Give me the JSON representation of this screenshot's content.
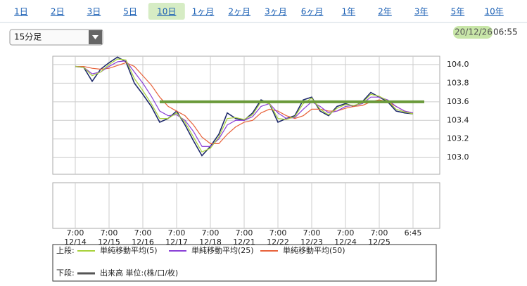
{
  "tabs": [
    "1日",
    "2日",
    "3日",
    "5日",
    "10日",
    "1ヶ月",
    "2ヶ月",
    "3ヶ月",
    "6ヶ月",
    "1年",
    "2年",
    "3年",
    "5年",
    "10年"
  ],
  "selected_tab": 4,
  "interval_select": "15分足",
  "timestamp": {
    "date": "20/12/26",
    "time": "06:55"
  },
  "chart_data": {
    "type": "line",
    "categories": [
      "7:00 12/14",
      null,
      null,
      null,
      "7:00 12/15",
      null,
      null,
      null,
      "7:00 12/16",
      null,
      null,
      null,
      "7:00 12/17",
      null,
      null,
      null,
      "7:00 12/18",
      null,
      null,
      null,
      "7:00 12/21",
      null,
      null,
      null,
      "7:00 12/22",
      null,
      null,
      null,
      "7:00 12/23",
      null,
      null,
      null,
      "7:00 12/24",
      null,
      null,
      null,
      "7:00 12/25",
      null,
      null,
      null,
      "6:45"
    ],
    "price": {
      "color": "#1f2a6b",
      "values": [
        103.98,
        103.97,
        103.82,
        103.95,
        104.02,
        104.08,
        104.03,
        103.8,
        103.68,
        103.55,
        103.38,
        103.42,
        103.5,
        103.35,
        103.18,
        103.02,
        103.12,
        103.25,
        103.48,
        103.42,
        103.4,
        103.48,
        103.62,
        103.58,
        103.38,
        103.42,
        103.45,
        103.62,
        103.65,
        103.5,
        103.45,
        103.55,
        103.58,
        103.55,
        103.6,
        103.7,
        103.65,
        103.6,
        103.5,
        103.48,
        103.47
      ]
    },
    "series": [
      {
        "name": "単純移動平均(5)",
        "color": "#a8d13a",
        "values": [
          103.98,
          103.97,
          103.88,
          103.92,
          104.0,
          104.06,
          104.05,
          103.85,
          103.72,
          103.58,
          103.42,
          103.42,
          103.48,
          103.38,
          103.22,
          103.06,
          103.1,
          103.22,
          103.42,
          103.43,
          103.41,
          103.46,
          103.6,
          103.58,
          103.42,
          103.41,
          103.44,
          103.58,
          103.64,
          103.52,
          103.46,
          103.53,
          103.57,
          103.56,
          103.59,
          103.68,
          103.66,
          103.61,
          103.52,
          103.49,
          103.47
        ]
      },
      {
        "name": "単純移動平均(25)",
        "color": "#8a3fd6",
        "values": [
          103.98,
          103.97,
          103.9,
          103.92,
          103.98,
          104.03,
          104.04,
          103.92,
          103.8,
          103.66,
          103.5,
          103.45,
          103.46,
          103.4,
          103.28,
          103.12,
          103.12,
          103.2,
          103.35,
          103.4,
          103.4,
          103.44,
          103.55,
          103.58,
          103.48,
          103.42,
          103.43,
          103.52,
          103.6,
          103.55,
          103.48,
          103.5,
          103.55,
          103.56,
          103.58,
          103.65,
          103.65,
          103.62,
          103.55,
          103.5,
          103.48
        ]
      },
      {
        "name": "単純移動平均(50)",
        "color": "#e8623a",
        "values": [
          103.98,
          103.98,
          103.96,
          103.95,
          103.96,
          103.99,
          104.02,
          103.98,
          103.88,
          103.78,
          103.65,
          103.55,
          103.5,
          103.45,
          103.35,
          103.22,
          103.15,
          103.15,
          103.25,
          103.33,
          103.38,
          103.4,
          103.48,
          103.52,
          103.5,
          103.45,
          103.42,
          103.45,
          103.52,
          103.52,
          103.5,
          103.5,
          103.53,
          103.55,
          103.56,
          103.6,
          103.62,
          103.6,
          103.55,
          103.5,
          103.48
        ]
      }
    ],
    "hline": {
      "value": 103.6,
      "from": 10,
      "color": "#6a9a3a"
    },
    "ylim": [
      102.82,
      104.09
    ],
    "yticks": [
      {
        "value": 103,
        "label": "103.0"
      },
      103.2,
      103.4,
      103.6,
      103.8,
      {
        "value": 104,
        "label": "104.0"
      }
    ],
    "grid": true,
    "legend": {
      "upper": "上段:",
      "lower": "下段:",
      "volume": {
        "name": "出来高 単位:(株/口/枚)",
        "color": "#555555"
      }
    }
  }
}
